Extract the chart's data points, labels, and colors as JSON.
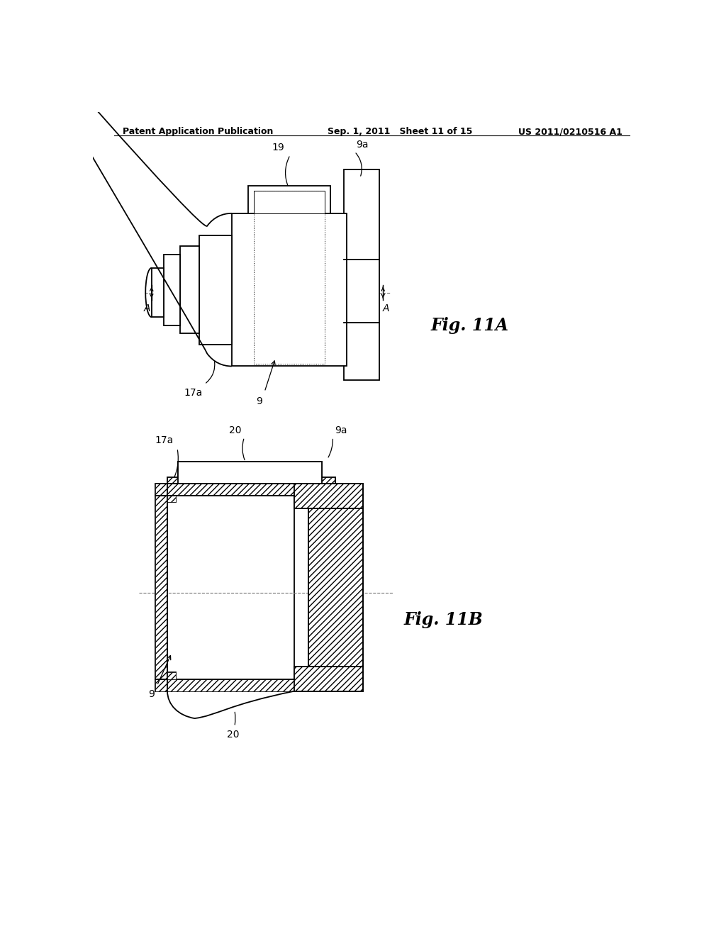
{
  "header_left": "Patent Application Publication",
  "header_mid": "Sep. 1, 2011   Sheet 11 of 15",
  "header_right": "US 2011/0210516 A1",
  "fig11a_label": "Fig. 11A",
  "fig11b_label": "Fig. 11B",
  "bg_color": "#ffffff",
  "line_color": "#000000"
}
